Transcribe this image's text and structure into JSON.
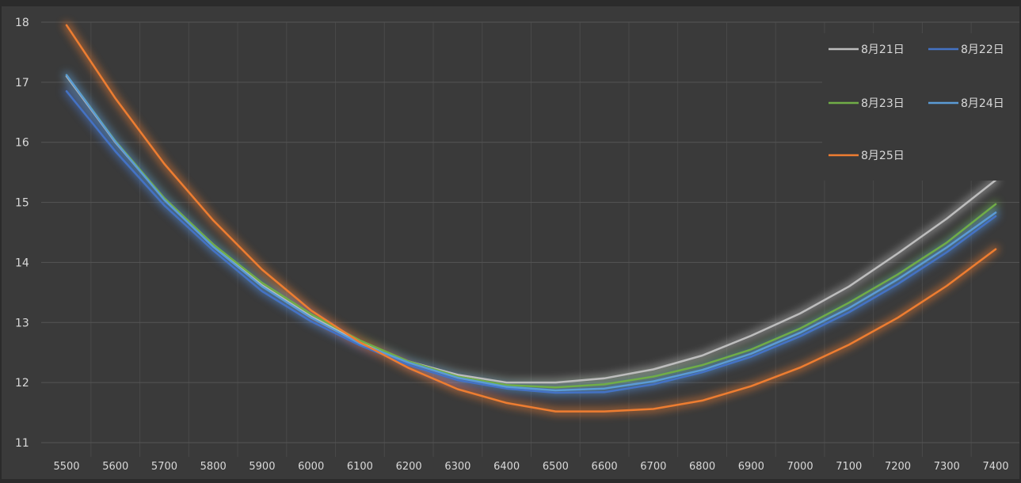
{
  "chart_data": {
    "type": "line",
    "title": "",
    "xlabel": "",
    "ylabel": "",
    "x": [
      5500,
      5600,
      5700,
      5800,
      5900,
      6000,
      6100,
      6200,
      6300,
      6400,
      6500,
      6600,
      6700,
      6800,
      6900,
      7000,
      7100,
      7200,
      7300,
      7400
    ],
    "ylim": [
      11,
      18
    ],
    "yticks": [
      11,
      12,
      13,
      14,
      15,
      16,
      17,
      18
    ],
    "grid": true,
    "legend_position": "top-right",
    "colors": {
      "background": "#3a3a3a",
      "page": "#2b2b2b",
      "grid": "#555555",
      "tick_text": "#d9d9d9"
    },
    "series": [
      {
        "name": "8月21日",
        "color": "#bdbdbd",
        "values": [
          17.1,
          16.0,
          15.05,
          14.3,
          13.62,
          13.1,
          12.68,
          12.35,
          12.13,
          12.0,
          12.0,
          12.07,
          12.22,
          12.45,
          12.78,
          13.15,
          13.6,
          14.15,
          14.73,
          15.37
        ]
      },
      {
        "name": "8月22日",
        "color": "#4472c4",
        "values": [
          16.85,
          15.85,
          14.95,
          14.2,
          13.52,
          13.02,
          12.62,
          12.29,
          12.04,
          11.9,
          11.83,
          11.84,
          11.97,
          12.17,
          12.43,
          12.77,
          13.17,
          13.64,
          14.17,
          14.77
        ]
      },
      {
        "name": "8月23日",
        "color": "#70ad47",
        "values": [
          17.12,
          16.02,
          15.07,
          14.3,
          13.66,
          13.14,
          12.7,
          12.35,
          12.1,
          11.96,
          11.92,
          11.97,
          12.1,
          12.29,
          12.55,
          12.9,
          13.33,
          13.8,
          14.33,
          14.97
        ]
      },
      {
        "name": "8月24日",
        "color": "#5b9bd5",
        "values": [
          17.12,
          16.01,
          15.04,
          14.26,
          13.6,
          13.08,
          12.65,
          12.33,
          12.08,
          11.93,
          11.87,
          11.9,
          12.02,
          12.21,
          12.48,
          12.83,
          13.24,
          13.72,
          14.25,
          14.83
        ]
      },
      {
        "name": "8月25日",
        "color": "#ed7d31",
        "values": [
          17.95,
          16.73,
          15.64,
          14.7,
          13.88,
          13.2,
          12.67,
          12.24,
          11.89,
          11.66,
          11.52,
          11.52,
          11.56,
          11.7,
          11.94,
          12.25,
          12.63,
          13.08,
          13.61,
          14.22
        ]
      }
    ]
  }
}
